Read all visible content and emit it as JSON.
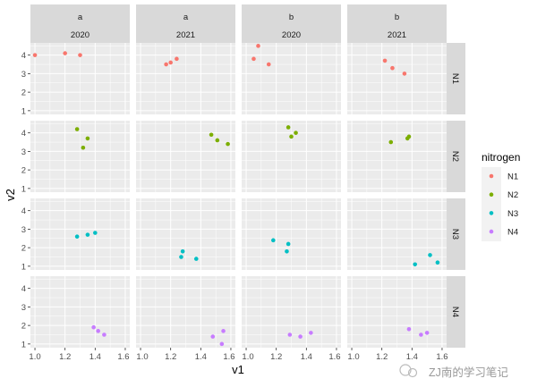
{
  "chart_data": {
    "type": "scatter",
    "xlabel": "v1",
    "ylabel": "v2",
    "xlim": [
      0.97,
      1.63
    ],
    "ylim": [
      0.8,
      4.66
    ],
    "x_ticks": [
      "1.0",
      "1.2",
      "1.4",
      "1.6"
    ],
    "x_tick_values": [
      1.0,
      1.2,
      1.4,
      1.6
    ],
    "y_ticks": [
      "1",
      "2",
      "3",
      "4"
    ],
    "y_tick_values": [
      1,
      2,
      3,
      4
    ],
    "grid": true,
    "facet_columns": [
      {
        "top": "a",
        "bottom": "2020"
      },
      {
        "top": "a",
        "bottom": "2021"
      },
      {
        "top": "b",
        "bottom": "2020"
      },
      {
        "top": "b",
        "bottom": "2021"
      }
    ],
    "facet_rows": [
      "N1",
      "N2",
      "N3",
      "N4"
    ],
    "legend": {
      "title": "nitrogen",
      "placement": "right",
      "entries": [
        {
          "name": "N1",
          "color": "#F8766D"
        },
        {
          "name": "N2",
          "color": "#7CAE00"
        },
        {
          "name": "N3",
          "color": "#00BFC4"
        },
        {
          "name": "N4",
          "color": "#C77CFF"
        }
      ]
    },
    "panels": [
      {
        "row": "N1",
        "col": 0,
        "points": [
          [
            1.0,
            4.0
          ],
          [
            1.2,
            4.1
          ],
          [
            1.3,
            4.0
          ]
        ]
      },
      {
        "row": "N1",
        "col": 1,
        "points": [
          [
            1.17,
            3.5
          ],
          [
            1.2,
            3.6
          ],
          [
            1.24,
            3.8
          ]
        ]
      },
      {
        "row": "N1",
        "col": 2,
        "points": [
          [
            1.05,
            3.8
          ],
          [
            1.08,
            4.5
          ],
          [
            1.15,
            3.5
          ]
        ]
      },
      {
        "row": "N1",
        "col": 3,
        "points": [
          [
            1.22,
            3.7
          ],
          [
            1.27,
            3.3
          ],
          [
            1.35,
            3.0
          ]
        ]
      },
      {
        "row": "N2",
        "col": 0,
        "points": [
          [
            1.28,
            4.2
          ],
          [
            1.32,
            3.2
          ],
          [
            1.35,
            3.7
          ]
        ]
      },
      {
        "row": "N2",
        "col": 1,
        "points": [
          [
            1.47,
            3.9
          ],
          [
            1.51,
            3.6
          ],
          [
            1.58,
            3.4
          ]
        ]
      },
      {
        "row": "N2",
        "col": 2,
        "points": [
          [
            1.28,
            4.3
          ],
          [
            1.3,
            3.8
          ],
          [
            1.33,
            4.0
          ]
        ]
      },
      {
        "row": "N2",
        "col": 3,
        "points": [
          [
            1.26,
            3.5
          ],
          [
            1.37,
            3.7
          ],
          [
            1.38,
            3.8
          ]
        ]
      },
      {
        "row": "N3",
        "col": 0,
        "points": [
          [
            1.28,
            2.6
          ],
          [
            1.35,
            2.7
          ],
          [
            1.4,
            2.8
          ]
        ]
      },
      {
        "row": "N3",
        "col": 1,
        "points": [
          [
            1.27,
            1.5
          ],
          [
            1.28,
            1.8
          ],
          [
            1.37,
            1.4
          ]
        ]
      },
      {
        "row": "N3",
        "col": 2,
        "points": [
          [
            1.18,
            2.4
          ],
          [
            1.28,
            2.2
          ],
          [
            1.27,
            1.8
          ]
        ]
      },
      {
        "row": "N3",
        "col": 3,
        "points": [
          [
            1.42,
            1.1
          ],
          [
            1.52,
            1.6
          ],
          [
            1.57,
            1.2
          ]
        ]
      },
      {
        "row": "N4",
        "col": 0,
        "points": [
          [
            1.39,
            1.9
          ],
          [
            1.42,
            1.7
          ],
          [
            1.46,
            1.5
          ]
        ]
      },
      {
        "row": "N4",
        "col": 1,
        "points": [
          [
            1.48,
            1.4
          ],
          [
            1.54,
            1.0
          ],
          [
            1.55,
            1.7
          ]
        ]
      },
      {
        "row": "N4",
        "col": 2,
        "points": [
          [
            1.29,
            1.5
          ],
          [
            1.36,
            1.4
          ],
          [
            1.43,
            1.6
          ]
        ]
      },
      {
        "row": "N4",
        "col": 3,
        "points": [
          [
            1.38,
            1.8
          ],
          [
            1.46,
            1.5
          ],
          [
            1.5,
            1.6
          ]
        ]
      }
    ]
  },
  "watermark": "ZJ南的学习笔记"
}
